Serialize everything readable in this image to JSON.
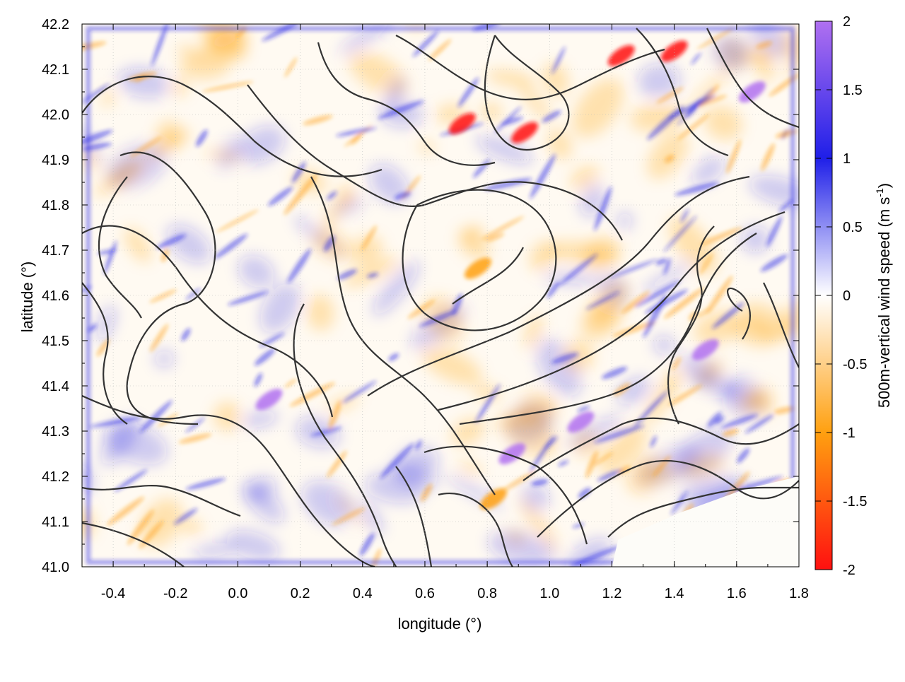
{
  "chart_data": {
    "type": "heatmap",
    "title": "",
    "xlabel": "longitude (°)",
    "ylabel": "latitude (°)",
    "xlim": [
      -0.5,
      1.8
    ],
    "ylim": [
      41.0,
      42.2
    ],
    "x_ticks": [
      "-0.4",
      "-0.2",
      "0.0",
      "0.2",
      "0.4",
      "0.6",
      "0.8",
      "1.0",
      "1.2",
      "1.4",
      "1.6",
      "1.8"
    ],
    "y_ticks": [
      "41.0",
      "41.1",
      "41.2",
      "41.3",
      "41.4",
      "41.5",
      "41.6",
      "41.7",
      "41.8",
      "41.9",
      "42.0",
      "42.1",
      "42.2"
    ],
    "grid": true,
    "colorbar": {
      "label_main": "500m-vertical wind speed (m s",
      "label_sup": "-1",
      "label_close": ")",
      "range": [
        -2,
        2
      ],
      "ticks": [
        "2",
        "1.5",
        "1",
        "0.5",
        "0",
        "-0.5",
        "-1",
        "-1.5",
        "-2"
      ],
      "colors": {
        "high": "#b070f0",
        "upper": "#1f1fe8",
        "zero": "#ffffff",
        "lower": "#ffa010",
        "low": "#ff1010"
      }
    },
    "field_description_features": {
      "strong_downdrafts": [
        {
          "lon": 1.23,
          "lat": 42.13,
          "w": -1.9
        },
        {
          "lon": 1.4,
          "lat": 42.14,
          "w": -1.8
        },
        {
          "lon": 0.72,
          "lat": 41.98,
          "w": -1.6
        },
        {
          "lon": 0.92,
          "lat": 41.96,
          "w": -1.5
        },
        {
          "lon": 0.82,
          "lat": 41.15,
          "w": -1.2
        },
        {
          "lon": 0.77,
          "lat": 41.66,
          "w": -1.0
        }
      ],
      "strong_updrafts": [
        {
          "lon": 1.5,
          "lat": 41.48,
          "w": 1.9
        },
        {
          "lon": 1.1,
          "lat": 41.32,
          "w": 1.8
        },
        {
          "lon": 0.88,
          "lat": 41.25,
          "w": 1.7
        },
        {
          "lon": 1.65,
          "lat": 42.05,
          "w": 1.8
        },
        {
          "lon": 0.1,
          "lat": 41.37,
          "w": 1.5
        }
      ]
    },
    "contour_color": "#333333"
  }
}
